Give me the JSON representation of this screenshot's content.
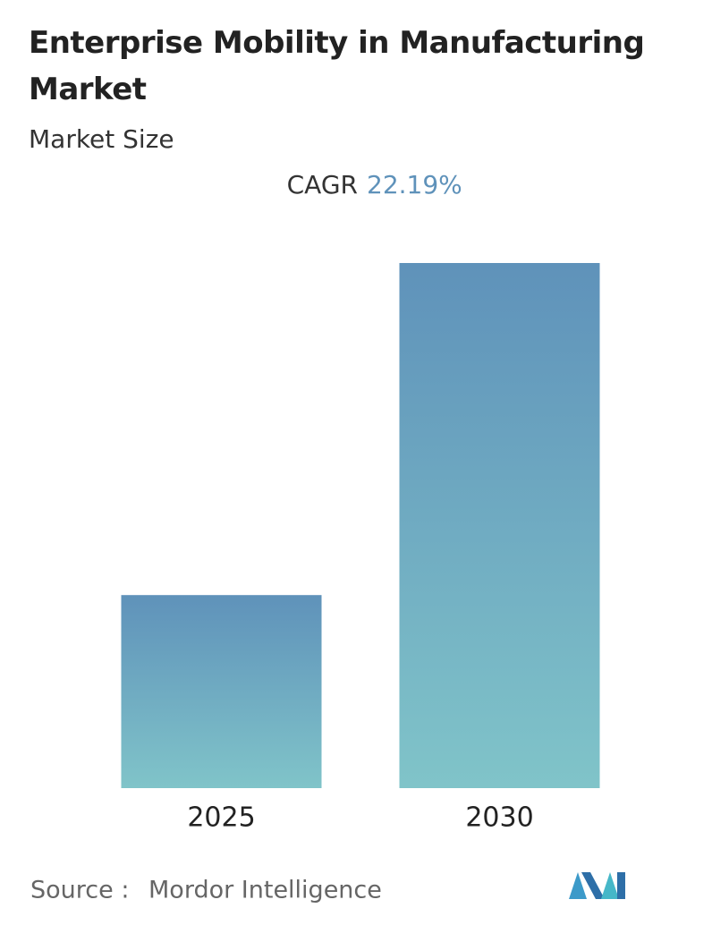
{
  "chart_data": {
    "type": "bar",
    "title": "Enterprise Mobility in Manufacturing Market",
    "subtitle": "Market Size",
    "cagr_label": "CAGR",
    "cagr_value": "22.19%",
    "categories": [
      "2025",
      "2030"
    ],
    "values": [
      1,
      2.72
    ],
    "gradient": [
      "#5f92ba",
      "#80c4c9"
    ],
    "ylim": [
      0,
      2.72
    ],
    "source_label": "Source :",
    "source": "Mordor Intelligence"
  }
}
